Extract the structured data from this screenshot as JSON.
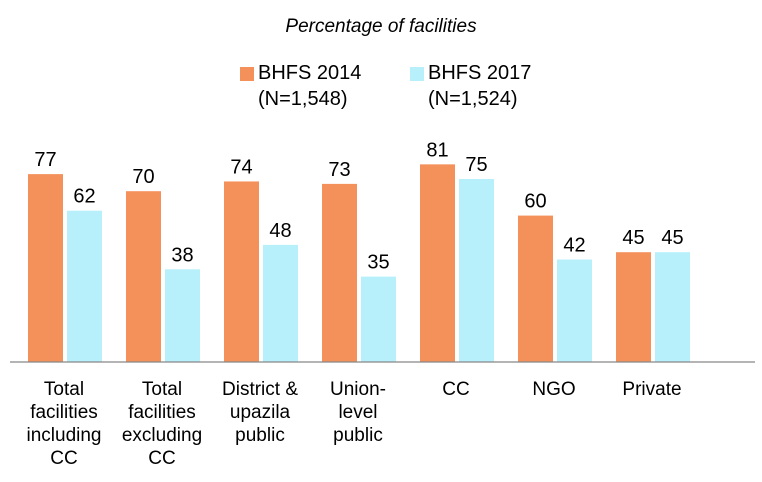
{
  "chart_data": {
    "type": "bar",
    "title": "Percentage of facilities",
    "categories": [
      "Total facilities including CC",
      "Total facilities excluding CC",
      "District & upazila public",
      "Union-level public",
      "CC",
      "NGO",
      "Private"
    ],
    "series": [
      {
        "name": "BHFS 2014\n(N=1,548)",
        "color": "#f4915a",
        "values": [
          77,
          70,
          74,
          73,
          81,
          60,
          45
        ]
      },
      {
        "name": "BHFS 2017\n(N=1,524)",
        "color": "#b7f0fb",
        "values": [
          62,
          38,
          48,
          35,
          75,
          42,
          45
        ]
      }
    ],
    "ylim": [
      0,
      100
    ]
  }
}
